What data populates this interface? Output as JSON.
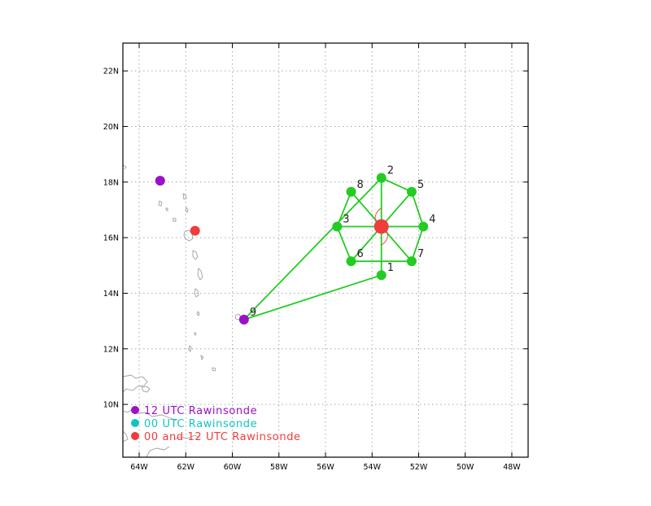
{
  "map": {
    "lon_range": [
      -64.7,
      -47.3
    ],
    "lat_range": [
      8.1,
      23.0
    ],
    "x_ticks": [
      {
        "lon": -64,
        "label": "64W"
      },
      {
        "lon": -62,
        "label": "62W"
      },
      {
        "lon": -60,
        "label": "60W"
      },
      {
        "lon": -58,
        "label": "58W"
      },
      {
        "lon": -56,
        "label": "56W"
      },
      {
        "lon": -54,
        "label": "54W"
      },
      {
        "lon": -52,
        "label": "52W"
      },
      {
        "lon": -50,
        "label": "50W"
      },
      {
        "lon": -48,
        "label": "48W"
      }
    ],
    "y_ticks": [
      {
        "lat": 10,
        "label": "10N"
      },
      {
        "lat": 12,
        "label": "12N"
      },
      {
        "lat": 14,
        "label": "14N"
      },
      {
        "lat": 16,
        "label": "16N"
      },
      {
        "lat": 18,
        "label": "18N"
      },
      {
        "lat": 20,
        "label": "20N"
      },
      {
        "lat": 22,
        "label": "22N"
      }
    ],
    "grid": true,
    "colors": {
      "network": "#22cc22",
      "rawinsonde_12": "#9b10c8",
      "rawinsonde_00": "#10c4c4",
      "rawinsonde_both": "#f03c3c",
      "coast": "#a0a0a0",
      "grid": "#a8a8a8"
    },
    "center": {
      "lon": -53.6,
      "lat": 16.4,
      "color": "#f03c3c"
    },
    "drop_points": [
      {
        "id": "1",
        "label": "1",
        "lon": -53.6,
        "lat": 14.65
      },
      {
        "id": "2",
        "label": "2",
        "lon": -53.6,
        "lat": 18.15
      },
      {
        "id": "3",
        "label": "3",
        "lon": -55.5,
        "lat": 16.4
      },
      {
        "id": "4",
        "label": "4",
        "lon": -51.8,
        "lat": 16.4
      },
      {
        "id": "5",
        "label": "5",
        "lon": -52.3,
        "lat": 17.65
      },
      {
        "id": "6",
        "label": "6",
        "lon": -54.9,
        "lat": 15.15
      },
      {
        "id": "7",
        "label": "7",
        "lon": -52.3,
        "lat": 15.15
      },
      {
        "id": "8",
        "label": "8",
        "lon": -54.9,
        "lat": 17.65
      }
    ],
    "flight_path": [
      "1",
      "center",
      "2",
      "center",
      "3",
      "center",
      "4",
      "5",
      "center",
      "6",
      "7",
      "center",
      "8",
      "3",
      "6",
      "center",
      "7",
      "4",
      "center",
      "5",
      "2",
      "9",
      "1"
    ],
    "stations": [
      {
        "id": "9",
        "label": "9",
        "lon": -59.5,
        "lat": 13.05,
        "type": "12"
      },
      {
        "id": "s12a",
        "label": "",
        "lon": -63.1,
        "lat": 18.05,
        "type": "12"
      },
      {
        "id": "sboth",
        "label": "",
        "lon": -61.6,
        "lat": 16.25,
        "type": "both"
      }
    ],
    "legend": [
      {
        "type": "12",
        "label": "12 UTC Rawinsonde"
      },
      {
        "type": "00",
        "label": "00 UTC Rawinsonde"
      },
      {
        "type": "both",
        "label": "00 and 12 UTC Rawinsonde"
      }
    ]
  }
}
